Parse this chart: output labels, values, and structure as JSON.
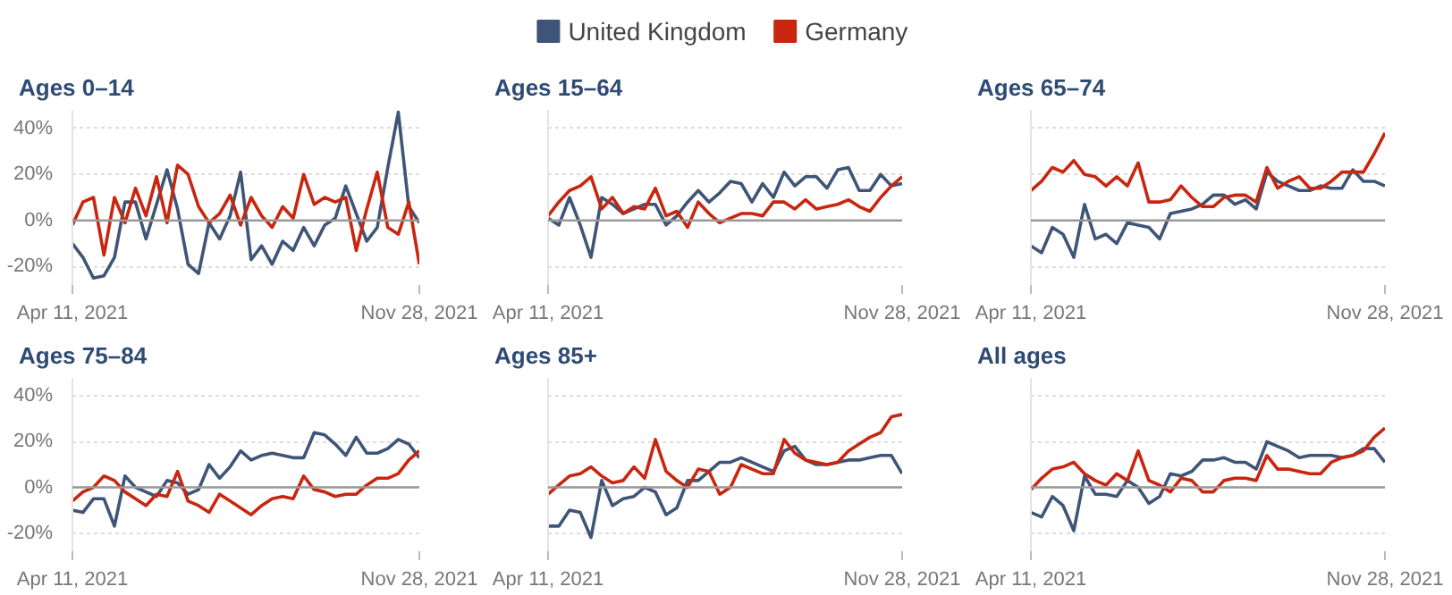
{
  "chart_data": [
    {
      "type": "line",
      "title": "Ages 0–14",
      "legend": "top",
      "grid": "y",
      "marker": "none",
      "line_style": "solid",
      "x": [
        "2021-04-11",
        "2021-04-18",
        "2021-04-25",
        "2021-05-02",
        "2021-05-09",
        "2021-05-16",
        "2021-05-23",
        "2021-05-30",
        "2021-06-06",
        "2021-06-13",
        "2021-06-20",
        "2021-06-27",
        "2021-07-04",
        "2021-07-11",
        "2021-07-18",
        "2021-07-25",
        "2021-08-01",
        "2021-08-08",
        "2021-08-15",
        "2021-08-22",
        "2021-08-29",
        "2021-09-05",
        "2021-09-12",
        "2021-09-19",
        "2021-09-26",
        "2021-10-03",
        "2021-10-10",
        "2021-10-17",
        "2021-10-24",
        "2021-10-31",
        "2021-11-07",
        "2021-11-14",
        "2021-11-21",
        "2021-11-28"
      ],
      "xlim": [
        "2021-04-11",
        "2021-11-28"
      ],
      "xticks": [
        {
          "value": "2021-04-11",
          "label": "Apr 11, 2021"
        },
        {
          "value": "2021-11-28",
          "label": "Nov 28, 2021"
        }
      ],
      "ylim": [
        -28,
        48
      ],
      "yticks": [
        {
          "value": -20,
          "label": "-20%"
        },
        {
          "value": 0,
          "label": "0%"
        },
        {
          "value": 20,
          "label": "20%"
        },
        {
          "value": 40,
          "label": "40%"
        }
      ],
      "ref_lines": [
        {
          "axis": "y",
          "value": 0,
          "color": "#999999"
        }
      ],
      "series": [
        {
          "name": "United Kingdom",
          "color": "#3f5577",
          "values": [
            -10,
            -16,
            -25,
            -24,
            -16,
            8,
            8,
            -8,
            7,
            22,
            5,
            -19,
            -23,
            -1,
            -8,
            2,
            21,
            -17,
            -11,
            -19,
            -9,
            -13,
            -3,
            -11,
            -2,
            1,
            15,
            3,
            -9,
            -3,
            23,
            47,
            6,
            -1
          ]
        },
        {
          "name": "Germany",
          "color": "#c8260f",
          "values": [
            -2,
            8,
            10,
            -15,
            10,
            -1,
            14,
            2,
            19,
            -1,
            24,
            20,
            6,
            -1,
            3,
            11,
            -2,
            10,
            2,
            -3,
            6,
            1,
            20,
            7,
            10,
            8,
            10,
            -13,
            5,
            21,
            -3,
            -6,
            8,
            -19
          ]
        }
      ]
    },
    {
      "type": "line",
      "title": "Ages 15–64",
      "grid": "y",
      "marker": "none",
      "line_style": "solid",
      "tick_labels": "x",
      "x": [
        "2021-04-11",
        "2021-04-18",
        "2021-04-25",
        "2021-05-02",
        "2021-05-09",
        "2021-05-16",
        "2021-05-23",
        "2021-05-30",
        "2021-06-06",
        "2021-06-13",
        "2021-06-20",
        "2021-06-27",
        "2021-07-04",
        "2021-07-11",
        "2021-07-18",
        "2021-07-25",
        "2021-08-01",
        "2021-08-08",
        "2021-08-15",
        "2021-08-22",
        "2021-08-29",
        "2021-09-05",
        "2021-09-12",
        "2021-09-19",
        "2021-09-26",
        "2021-10-03",
        "2021-10-10",
        "2021-10-17",
        "2021-10-24",
        "2021-10-31",
        "2021-11-07",
        "2021-11-14",
        "2021-11-21",
        "2021-11-28"
      ],
      "xlim": [
        "2021-04-11",
        "2021-11-28"
      ],
      "xticks": [
        {
          "value": "2021-04-11",
          "label": "Apr 11, 2021"
        },
        {
          "value": "2021-11-28",
          "label": "Nov 28, 2021"
        }
      ],
      "ylim": [
        -28,
        48
      ],
      "yticks": [
        {
          "value": -20,
          "label": null
        },
        {
          "value": 0,
          "label": null
        },
        {
          "value": 20,
          "label": null
        },
        {
          "value": 40,
          "label": null
        }
      ],
      "ref_lines": [
        {
          "axis": "y",
          "value": 0,
          "color": "#999999"
        }
      ],
      "series": [
        {
          "color": "#3f5577",
          "values": [
            1,
            -2,
            10,
            -2,
            -16,
            10,
            7,
            3,
            5,
            7,
            7,
            -2,
            2,
            8,
            13,
            8,
            12,
            17,
            16,
            8,
            16,
            10,
            21,
            15,
            19,
            19,
            14,
            22,
            23,
            13,
            13,
            20,
            15,
            16
          ]
        },
        {
          "color": "#c8260f",
          "values": [
            2,
            8,
            13,
            15,
            19,
            5,
            10,
            3,
            6,
            5,
            14,
            2,
            4,
            -3,
            8,
            3,
            -1,
            1,
            3,
            3,
            2,
            8,
            8,
            5,
            9,
            5,
            6,
            7,
            9,
            6,
            4,
            10,
            15,
            19
          ]
        }
      ]
    },
    {
      "type": "line",
      "title": "Ages 65–74",
      "grid": "y",
      "marker": "none",
      "line_style": "solid",
      "tick_labels": "x",
      "x": [
        "2021-04-11",
        "2021-04-18",
        "2021-04-25",
        "2021-05-02",
        "2021-05-09",
        "2021-05-16",
        "2021-05-23",
        "2021-05-30",
        "2021-06-06",
        "2021-06-13",
        "2021-06-20",
        "2021-06-27",
        "2021-07-04",
        "2021-07-11",
        "2021-07-18",
        "2021-07-25",
        "2021-08-01",
        "2021-08-08",
        "2021-08-15",
        "2021-08-22",
        "2021-08-29",
        "2021-09-05",
        "2021-09-12",
        "2021-09-19",
        "2021-09-26",
        "2021-10-03",
        "2021-10-10",
        "2021-10-17",
        "2021-10-24",
        "2021-10-31",
        "2021-11-07",
        "2021-11-14",
        "2021-11-21",
        "2021-11-28"
      ],
      "xlim": [
        "2021-04-11",
        "2021-11-28"
      ],
      "xticks": [
        {
          "value": "2021-04-11",
          "label": "Apr 11, 2021"
        },
        {
          "value": "2021-11-28",
          "label": "Nov 28, 2021"
        }
      ],
      "ylim": [
        -28,
        48
      ],
      "yticks": [
        {
          "value": -20,
          "label": null
        },
        {
          "value": 0,
          "label": null
        },
        {
          "value": 20,
          "label": null
        },
        {
          "value": 40,
          "label": null
        }
      ],
      "ref_lines": [
        {
          "axis": "y",
          "value": 0,
          "color": "#999999"
        }
      ],
      "series": [
        {
          "color": "#3f5577",
          "values": [
            -11,
            -14,
            -3,
            -6,
            -16,
            7,
            -8,
            -6,
            -10,
            -1,
            -2,
            -3,
            -8,
            3,
            4,
            5,
            7,
            11,
            11,
            7,
            9,
            5,
            21,
            17,
            15,
            13,
            13,
            15,
            14,
            14,
            22,
            17,
            17,
            15
          ]
        },
        {
          "color": "#c8260f",
          "values": [
            13,
            17,
            23,
            21,
            26,
            20,
            19,
            15,
            19,
            15,
            25,
            8,
            8,
            9,
            15,
            10,
            6,
            6,
            10,
            11,
            11,
            8,
            23,
            14,
            17,
            19,
            14,
            14,
            17,
            21,
            21,
            21,
            29,
            38
          ]
        }
      ]
    },
    {
      "type": "line",
      "title": "Ages 75–84",
      "grid": "y",
      "marker": "none",
      "line_style": "solid",
      "x": [
        "2021-04-11",
        "2021-04-18",
        "2021-04-25",
        "2021-05-02",
        "2021-05-09",
        "2021-05-16",
        "2021-05-23",
        "2021-05-30",
        "2021-06-06",
        "2021-06-13",
        "2021-06-20",
        "2021-06-27",
        "2021-07-04",
        "2021-07-11",
        "2021-07-18",
        "2021-07-25",
        "2021-08-01",
        "2021-08-08",
        "2021-08-15",
        "2021-08-22",
        "2021-08-29",
        "2021-09-05",
        "2021-09-12",
        "2021-09-19",
        "2021-09-26",
        "2021-10-03",
        "2021-10-10",
        "2021-10-17",
        "2021-10-24",
        "2021-10-31",
        "2021-11-07",
        "2021-11-14",
        "2021-11-21",
        "2021-11-28"
      ],
      "xlim": [
        "2021-04-11",
        "2021-11-28"
      ],
      "xticks": [
        {
          "value": "2021-04-11",
          "label": "Apr 11, 2021"
        },
        {
          "value": "2021-11-28",
          "label": "Nov 28, 2021"
        }
      ],
      "ylim": [
        -28,
        48
      ],
      "yticks": [
        {
          "value": -20,
          "label": "-20%"
        },
        {
          "value": 0,
          "label": "0%"
        },
        {
          "value": 20,
          "label": "20%"
        },
        {
          "value": 40,
          "label": "40%"
        }
      ],
      "ref_lines": [
        {
          "axis": "y",
          "value": 0,
          "color": "#999999"
        }
      ],
      "series": [
        {
          "color": "#3f5577",
          "values": [
            -10,
            -11,
            -5,
            -5,
            -17,
            5,
            0,
            -2,
            -4,
            3,
            2,
            -3,
            -1,
            10,
            4,
            9,
            16,
            12,
            14,
            15,
            14,
            13,
            13,
            24,
            23,
            19,
            14,
            22,
            15,
            15,
            17,
            21,
            19,
            13
          ]
        },
        {
          "color": "#c8260f",
          "values": [
            -6,
            -2,
            0,
            5,
            3,
            -2,
            -5,
            -8,
            -3,
            -4,
            7,
            -6,
            -8,
            -11,
            -3,
            -6,
            -9,
            -12,
            -8,
            -5,
            -4,
            -5,
            5,
            -1,
            -2,
            -4,
            -3,
            -3,
            1,
            4,
            4,
            6,
            12,
            16
          ]
        }
      ]
    },
    {
      "type": "line",
      "title": "Ages 85+",
      "grid": "y",
      "marker": "none",
      "line_style": "solid",
      "tick_labels": "x",
      "x": [
        "2021-04-11",
        "2021-04-18",
        "2021-04-25",
        "2021-05-02",
        "2021-05-09",
        "2021-05-16",
        "2021-05-23",
        "2021-05-30",
        "2021-06-06",
        "2021-06-13",
        "2021-06-20",
        "2021-06-27",
        "2021-07-04",
        "2021-07-11",
        "2021-07-18",
        "2021-07-25",
        "2021-08-01",
        "2021-08-08",
        "2021-08-15",
        "2021-08-22",
        "2021-08-29",
        "2021-09-05",
        "2021-09-12",
        "2021-09-19",
        "2021-09-26",
        "2021-10-03",
        "2021-10-10",
        "2021-10-17",
        "2021-10-24",
        "2021-10-31",
        "2021-11-07",
        "2021-11-14",
        "2021-11-21",
        "2021-11-28"
      ],
      "xlim": [
        "2021-04-11",
        "2021-11-28"
      ],
      "xticks": [
        {
          "value": "2021-04-11",
          "label": "Apr 11, 2021"
        },
        {
          "value": "2021-11-28",
          "label": "Nov 28, 2021"
        }
      ],
      "ylim": [
        -28,
        48
      ],
      "yticks": [
        {
          "value": -20,
          "label": null
        },
        {
          "value": 0,
          "label": null
        },
        {
          "value": 20,
          "label": null
        },
        {
          "value": 40,
          "label": null
        }
      ],
      "ref_lines": [
        {
          "axis": "y",
          "value": 0,
          "color": "#999999"
        }
      ],
      "series": [
        {
          "color": "#3f5577",
          "values": [
            -17,
            -17,
            -10,
            -11,
            -22,
            3,
            -8,
            -5,
            -4,
            0,
            -2,
            -12,
            -9,
            3,
            3,
            7,
            11,
            11,
            13,
            11,
            9,
            7,
            16,
            18,
            12,
            10,
            10,
            11,
            12,
            12,
            13,
            14,
            14,
            6
          ]
        },
        {
          "color": "#c8260f",
          "values": [
            -3,
            1,
            5,
            6,
            9,
            5,
            2,
            3,
            9,
            4,
            21,
            7,
            3,
            0,
            8,
            7,
            -3,
            0,
            10,
            8,
            6,
            6,
            21,
            15,
            12,
            11,
            10,
            11,
            16,
            19,
            22,
            24,
            31,
            32
          ]
        }
      ]
    },
    {
      "type": "line",
      "title": "All ages",
      "grid": "y",
      "marker": "none",
      "line_style": "solid",
      "tick_labels": "x",
      "x": [
        "2021-04-11",
        "2021-04-18",
        "2021-04-25",
        "2021-05-02",
        "2021-05-09",
        "2021-05-16",
        "2021-05-23",
        "2021-05-30",
        "2021-06-06",
        "2021-06-13",
        "2021-06-20",
        "2021-06-27",
        "2021-07-04",
        "2021-07-11",
        "2021-07-18",
        "2021-07-25",
        "2021-08-01",
        "2021-08-08",
        "2021-08-15",
        "2021-08-22",
        "2021-08-29",
        "2021-09-05",
        "2021-09-12",
        "2021-09-19",
        "2021-09-26",
        "2021-10-03",
        "2021-10-10",
        "2021-10-17",
        "2021-10-24",
        "2021-10-31",
        "2021-11-07",
        "2021-11-14",
        "2021-11-21",
        "2021-11-28"
      ],
      "xlim": [
        "2021-04-11",
        "2021-11-28"
      ],
      "xticks": [
        {
          "value": "2021-04-11",
          "label": "Apr 11, 2021"
        },
        {
          "value": "2021-11-28",
          "label": "Nov 28, 2021"
        }
      ],
      "ylim": [
        -28,
        48
      ],
      "yticks": [
        {
          "value": -20,
          "label": null
        },
        {
          "value": 0,
          "label": null
        },
        {
          "value": 20,
          "label": null
        },
        {
          "value": 40,
          "label": null
        }
      ],
      "ref_lines": [
        {
          "axis": "y",
          "value": 0,
          "color": "#999999"
        }
      ],
      "series": [
        {
          "color": "#3f5577",
          "values": [
            -11,
            -13,
            -4,
            -8,
            -19,
            5,
            -3,
            -3,
            -4,
            3,
            0,
            -7,
            -4,
            6,
            5,
            7,
            12,
            12,
            13,
            11,
            11,
            8,
            20,
            18,
            16,
            13,
            14,
            14,
            14,
            13,
            14,
            17,
            17,
            11
          ]
        },
        {
          "color": "#c8260f",
          "values": [
            -1,
            4,
            8,
            9,
            11,
            6,
            3,
            1,
            6,
            3,
            16,
            3,
            1,
            -2,
            4,
            3,
            -2,
            -2,
            3,
            4,
            4,
            3,
            14,
            8,
            8,
            7,
            6,
            6,
            11,
            13,
            14,
            16,
            22,
            26
          ]
        }
      ]
    }
  ]
}
